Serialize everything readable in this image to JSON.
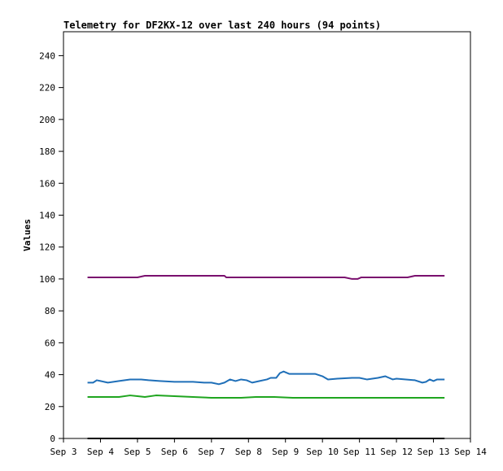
{
  "chart_data": {
    "type": "line",
    "title": "Telemetry for DF2KX-12 over last 240 hours (94 points)",
    "ylabel": "Values",
    "xlabel": "",
    "xlim": [
      3.0,
      14.0
    ],
    "ylim": [
      0,
      255
    ],
    "x_ticks": [
      {
        "x": 3,
        "label": "Sep 3"
      },
      {
        "x": 4,
        "label": "Sep 4"
      },
      {
        "x": 5,
        "label": "Sep 5"
      },
      {
        "x": 6,
        "label": "Sep 6"
      },
      {
        "x": 7,
        "label": "Sep 7"
      },
      {
        "x": 8,
        "label": "Sep 8"
      },
      {
        "x": 9,
        "label": "Sep 9"
      },
      {
        "x": 10,
        "label": "Sep 10"
      },
      {
        "x": 11,
        "label": "Sep 11"
      },
      {
        "x": 12,
        "label": "Sep 12"
      },
      {
        "x": 13,
        "label": "Sep 13"
      },
      {
        "x": 14,
        "label": "Sep 14"
      }
    ],
    "y_ticks": [
      0,
      20,
      40,
      60,
      80,
      100,
      120,
      140,
      160,
      180,
      200,
      220,
      240
    ],
    "grid": false,
    "legend": "none",
    "series": [
      {
        "color": "#7a0f6e",
        "points": [
          [
            3.65,
            101
          ],
          [
            4.5,
            101
          ],
          [
            5.0,
            101
          ],
          [
            5.2,
            102
          ],
          [
            6.0,
            102
          ],
          [
            7.0,
            102
          ],
          [
            7.35,
            102
          ],
          [
            7.4,
            101
          ],
          [
            8.0,
            101
          ],
          [
            9.0,
            101
          ],
          [
            10.0,
            101
          ],
          [
            10.6,
            101
          ],
          [
            10.8,
            100
          ],
          [
            10.95,
            100
          ],
          [
            11.05,
            101
          ],
          [
            11.5,
            101
          ],
          [
            12.0,
            101
          ],
          [
            12.3,
            101
          ],
          [
            12.5,
            102
          ],
          [
            13.0,
            102
          ],
          [
            13.3,
            102
          ]
        ]
      },
      {
        "color": "#1f6fb8",
        "points": [
          [
            3.65,
            35
          ],
          [
            3.8,
            35
          ],
          [
            3.9,
            36.5
          ],
          [
            4.0,
            36
          ],
          [
            4.2,
            35
          ],
          [
            4.5,
            36
          ],
          [
            4.8,
            37
          ],
          [
            5.1,
            37
          ],
          [
            5.3,
            36.5
          ],
          [
            5.6,
            36
          ],
          [
            6.0,
            35.5
          ],
          [
            6.5,
            35.5
          ],
          [
            6.8,
            35
          ],
          [
            7.0,
            35
          ],
          [
            7.2,
            34
          ],
          [
            7.35,
            35
          ],
          [
            7.5,
            37
          ],
          [
            7.65,
            36
          ],
          [
            7.8,
            37
          ],
          [
            7.95,
            36.5
          ],
          [
            8.1,
            35
          ],
          [
            8.3,
            36
          ],
          [
            8.5,
            37
          ],
          [
            8.6,
            38
          ],
          [
            8.75,
            38
          ],
          [
            8.85,
            41
          ],
          [
            8.95,
            42
          ],
          [
            9.1,
            40.5
          ],
          [
            9.5,
            40.5
          ],
          [
            9.8,
            40.5
          ],
          [
            10.0,
            39
          ],
          [
            10.15,
            37
          ],
          [
            10.4,
            37.5
          ],
          [
            10.8,
            38
          ],
          [
            11.0,
            38
          ],
          [
            11.2,
            37
          ],
          [
            11.5,
            38
          ],
          [
            11.7,
            39
          ],
          [
            11.8,
            38
          ],
          [
            11.9,
            37
          ],
          [
            12.0,
            37.5
          ],
          [
            12.5,
            36.5
          ],
          [
            12.7,
            35
          ],
          [
            12.8,
            35.5
          ],
          [
            12.9,
            37
          ],
          [
            13.0,
            36
          ],
          [
            13.1,
            37
          ],
          [
            13.3,
            37
          ]
        ]
      },
      {
        "color": "#1fa51f",
        "points": [
          [
            3.65,
            26
          ],
          [
            4.5,
            26
          ],
          [
            4.8,
            27
          ],
          [
            5.0,
            26.5
          ],
          [
            5.2,
            26
          ],
          [
            5.5,
            27
          ],
          [
            6.0,
            26.5
          ],
          [
            6.5,
            26
          ],
          [
            7.0,
            25.5
          ],
          [
            7.8,
            25.5
          ],
          [
            8.2,
            26
          ],
          [
            8.7,
            26
          ],
          [
            9.2,
            25.5
          ],
          [
            9.8,
            25.5
          ],
          [
            10.3,
            25.5
          ],
          [
            11.0,
            25.5
          ],
          [
            12.0,
            25.5
          ],
          [
            12.6,
            25.5
          ],
          [
            13.3,
            25.5
          ]
        ]
      },
      {
        "color": "#000000",
        "points": [
          [
            3.65,
            0
          ],
          [
            13.3,
            0
          ]
        ]
      }
    ]
  }
}
